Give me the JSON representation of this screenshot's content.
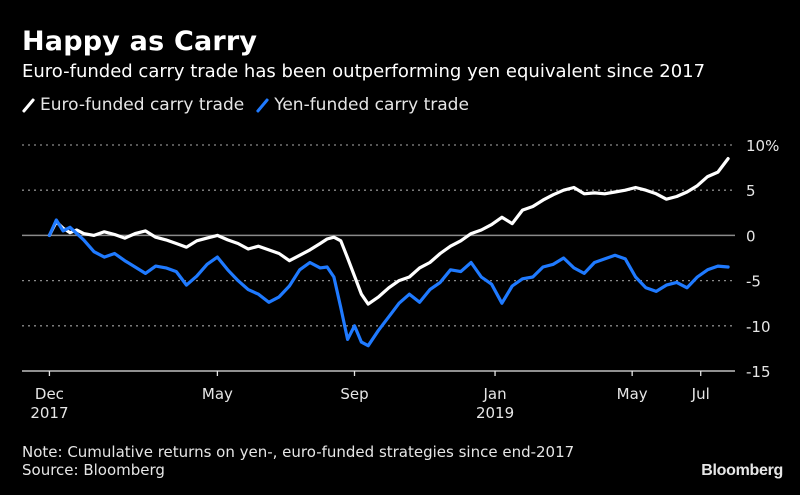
{
  "header": {
    "title": "Happy as Carry",
    "subtitle": "Euro-funded carry trade has been outperforming yen equivalent since 2017"
  },
  "legend": [
    {
      "label": "Euro-funded carry trade",
      "color": "#ffffff"
    },
    {
      "label": "Yen-funded carry trade",
      "color": "#1f7aff"
    }
  ],
  "footer": {
    "note": "Note: Cumulative returns on yen-, euro-funded strategies since end-2017",
    "source": "Source: Bloomberg",
    "brand": "Bloomberg"
  },
  "chart_data": {
    "type": "line",
    "title": "Happy as Carry",
    "subtitle": "Euro-funded carry trade has been outperforming yen equivalent since 2017",
    "xlabel": "",
    "ylabel": "%",
    "ylim": [
      -15,
      10
    ],
    "y_ticks": [
      {
        "value": 10,
        "label": "10%"
      },
      {
        "value": 5,
        "label": "5"
      },
      {
        "value": 0,
        "label": "0"
      },
      {
        "value": -5,
        "label": "-5"
      },
      {
        "value": -10,
        "label": "-10"
      },
      {
        "value": -15,
        "label": "-15"
      }
    ],
    "x_ticks": [
      {
        "t": 0,
        "label": "Dec",
        "sublabel": "2017"
      },
      {
        "t": 4.9,
        "label": "May",
        "sublabel": ""
      },
      {
        "t": 8.9,
        "label": "Sep",
        "sublabel": ""
      },
      {
        "t": 13.0,
        "label": "Jan",
        "sublabel": "2019"
      },
      {
        "t": 17.0,
        "label": "May",
        "sublabel": ""
      },
      {
        "t": 19.0,
        "label": "Jul",
        "sublabel": ""
      }
    ],
    "x_range_months": [
      -0.8,
      20.0
    ],
    "x_unit": "months since end-Dec 2017",
    "grid": "horizontal dotted",
    "legend_position": "top-left",
    "series": [
      {
        "name": "Euro-funded carry trade",
        "color": "#ffffff",
        "x": [
          0,
          0.2,
          0.4,
          0.6,
          0.8,
          1.0,
          1.3,
          1.6,
          1.9,
          2.2,
          2.5,
          2.8,
          3.1,
          3.4,
          3.7,
          4.0,
          4.3,
          4.6,
          4.9,
          5.2,
          5.5,
          5.8,
          6.1,
          6.4,
          6.7,
          7.0,
          7.3,
          7.6,
          7.9,
          8.1,
          8.3,
          8.5,
          8.7,
          8.9,
          9.1,
          9.3,
          9.6,
          9.9,
          10.2,
          10.5,
          10.8,
          11.1,
          11.4,
          11.7,
          12.0,
          12.3,
          12.6,
          12.9,
          13.2,
          13.5,
          13.8,
          14.1,
          14.4,
          14.7,
          15.0,
          15.3,
          15.6,
          15.9,
          16.2,
          16.5,
          16.8,
          17.1,
          17.4,
          17.7,
          18.0,
          18.3,
          18.6,
          18.9,
          19.2,
          19.5,
          19.8
        ],
        "values": [
          0,
          1.5,
          0.8,
          0.3,
          0.6,
          0.2,
          0.0,
          0.4,
          0.1,
          -0.3,
          0.2,
          0.5,
          -0.2,
          -0.5,
          -0.9,
          -1.3,
          -0.6,
          -0.3,
          0.0,
          -0.5,
          -0.9,
          -1.5,
          -1.2,
          -1.6,
          -2.0,
          -2.8,
          -2.2,
          -1.6,
          -0.9,
          -0.4,
          -0.2,
          -0.6,
          -2.5,
          -4.5,
          -6.5,
          -7.6,
          -6.8,
          -5.8,
          -5.0,
          -4.6,
          -3.6,
          -3.0,
          -2.0,
          -1.2,
          -0.6,
          0.2,
          0.6,
          1.2,
          2.0,
          1.3,
          2.8,
          3.2,
          3.9,
          4.5,
          5.0,
          5.3,
          4.6,
          4.7,
          4.6,
          4.8,
          5.0,
          5.3,
          5.0,
          4.6,
          4.0,
          4.3,
          4.8,
          5.5,
          6.5,
          7.0,
          8.5
        ]
      },
      {
        "name": "Yen-funded carry trade",
        "color": "#1f7aff",
        "x": [
          0,
          0.2,
          0.4,
          0.6,
          0.8,
          1.0,
          1.3,
          1.6,
          1.9,
          2.2,
          2.5,
          2.8,
          3.1,
          3.4,
          3.7,
          4.0,
          4.3,
          4.6,
          4.9,
          5.2,
          5.5,
          5.8,
          6.1,
          6.4,
          6.7,
          7.0,
          7.3,
          7.6,
          7.9,
          8.1,
          8.3,
          8.5,
          8.7,
          8.9,
          9.1,
          9.3,
          9.6,
          9.9,
          10.2,
          10.5,
          10.8,
          11.1,
          11.4,
          11.7,
          12.0,
          12.3,
          12.6,
          12.9,
          13.2,
          13.5,
          13.8,
          14.1,
          14.4,
          14.7,
          15.0,
          15.3,
          15.6,
          15.9,
          16.2,
          16.5,
          16.8,
          17.1,
          17.4,
          17.7,
          18.0,
          18.3,
          18.6,
          18.9,
          19.2,
          19.5,
          19.8
        ],
        "values": [
          0,
          1.7,
          0.5,
          0.9,
          0.2,
          -0.5,
          -1.8,
          -2.4,
          -2.0,
          -2.8,
          -3.5,
          -4.2,
          -3.4,
          -3.6,
          -4.0,
          -5.5,
          -4.5,
          -3.2,
          -2.4,
          -3.8,
          -5.0,
          -6.0,
          -6.5,
          -7.4,
          -6.8,
          -5.6,
          -3.8,
          -3.0,
          -3.6,
          -3.5,
          -4.6,
          -8.0,
          -11.5,
          -10.0,
          -11.8,
          -12.2,
          -10.5,
          -9.0,
          -7.5,
          -6.5,
          -7.4,
          -6.0,
          -5.2,
          -3.8,
          -4.0,
          -3.0,
          -4.6,
          -5.4,
          -7.5,
          -5.6,
          -4.8,
          -4.6,
          -3.5,
          -3.2,
          -2.5,
          -3.6,
          -4.2,
          -3.0,
          -2.6,
          -2.2,
          -2.6,
          -4.6,
          -5.8,
          -6.2,
          -5.5,
          -5.2,
          -5.8,
          -4.6,
          -3.8,
          -3.4,
          -3.5
        ]
      }
    ]
  }
}
